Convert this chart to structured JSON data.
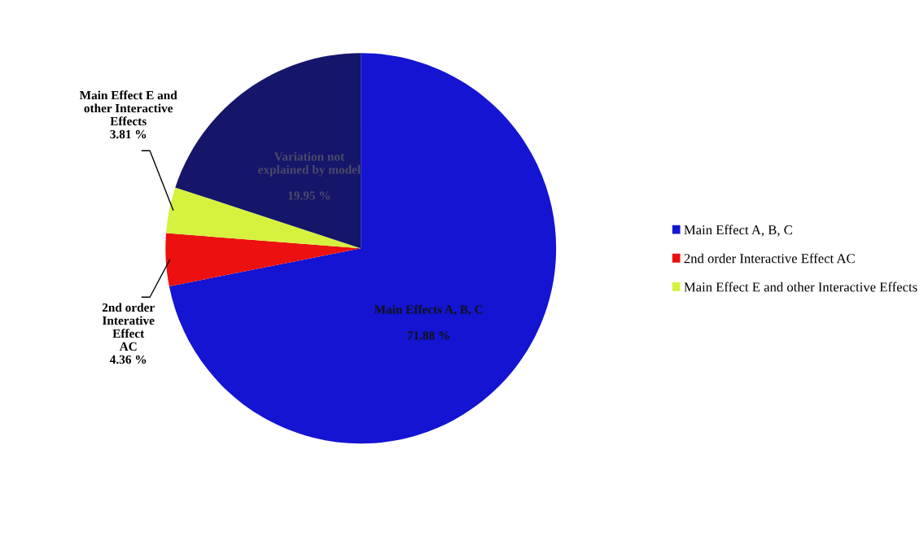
{
  "chart_data": {
    "type": "pie",
    "categories": [
      "Main Effect A, B, C",
      "2nd order Interactive Effect AC",
      "Main Effect E and other Interactive Effects",
      null
    ],
    "values": [
      71.88,
      4.36,
      3.81,
      19.95
    ],
    "colors": [
      "#1414d2",
      "#ec1010",
      "#d6f23e",
      "#15156a"
    ],
    "value_labels": [
      "Main Effects A, B, C\n\n71.88 %",
      "2nd order\nInterative\nEffect\nAC\n4.36 %",
      "Main Effect E and\nother Interactive\nEffects\n3.81 %",
      "Variation not\nexplained by model\n\n19.95 %"
    ],
    "legend": "right"
  }
}
